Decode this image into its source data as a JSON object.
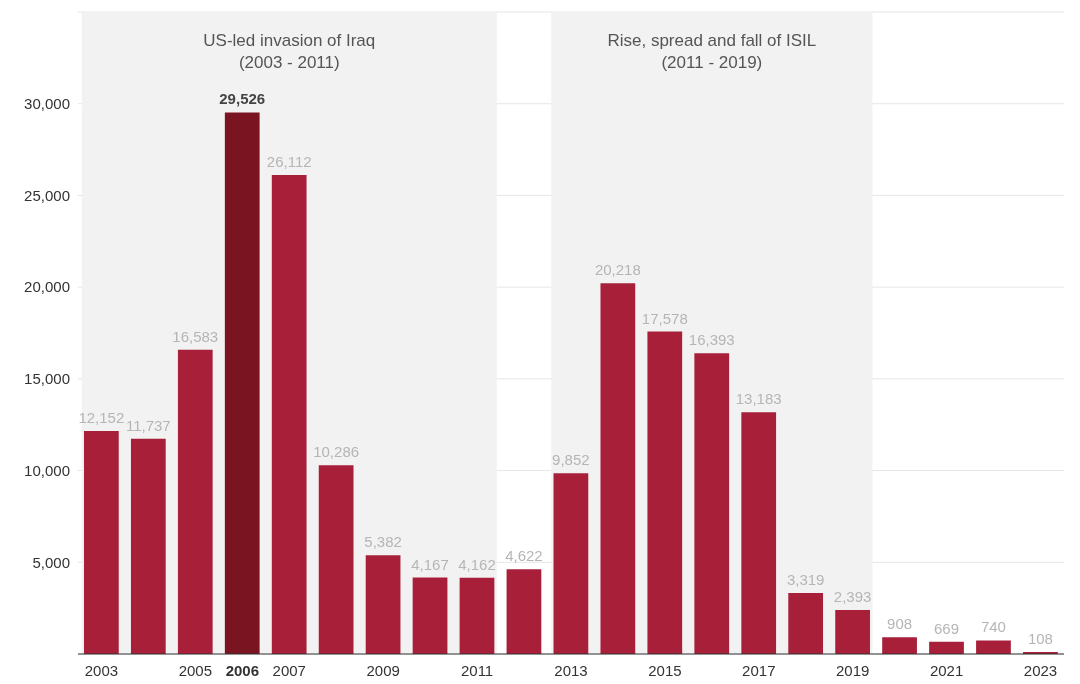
{
  "chart_data": {
    "type": "bar",
    "categories": [
      "2003",
      null,
      "2005",
      "2006",
      "2007",
      null,
      "2009",
      null,
      "2011",
      null,
      "2013",
      null,
      "2015",
      null,
      "2017",
      null,
      "2019",
      null,
      "2021",
      null,
      "2023"
    ],
    "values": [
      12152,
      11737,
      16583,
      29526,
      26112,
      10286,
      5382,
      4167,
      4162,
      4622,
      9852,
      20218,
      17578,
      16393,
      13183,
      3319,
      2393,
      908,
      669,
      740,
      108
    ],
    "color": "#a81f3a",
    "colors": [
      "#a81f3a",
      "#a81f3a",
      "#a81f3a",
      "#7a1420",
      "#a81f3a",
      "#a81f3a",
      "#a81f3a",
      "#a81f3a",
      "#a81f3a",
      "#a81f3a",
      "#a81f3a",
      "#a81f3a",
      "#a81f3a",
      "#a81f3a",
      "#a81f3a",
      "#a81f3a",
      "#a81f3a",
      "#a81f3a",
      "#a81f3a",
      "#a81f3a",
      "#a81f3a"
    ],
    "value_labels": [
      "12,152",
      "11,737",
      "16,583",
      "29,526",
      "26,112",
      "10,286",
      "5,382",
      "4,167",
      "4,162",
      "4,622",
      "9,852",
      "20,218",
      "17,578",
      "16,393",
      "13,183",
      "3,319",
      "2,393",
      "908",
      "669",
      "740",
      "108"
    ],
    "ylim": [
      0,
      35000
    ],
    "yticks": [
      {
        "value": 5000,
        "label": "5,000"
      },
      {
        "value": 10000,
        "label": "10,000"
      },
      {
        "value": 15000,
        "label": "15,000"
      },
      {
        "value": 20000,
        "label": "20,000"
      },
      {
        "value": 25000,
        "label": "25,000"
      },
      {
        "value": 30000,
        "label": "30,000"
      }
    ],
    "grid": "y",
    "bands": [
      {
        "axis": "x",
        "from": "2003",
        "to": "2011",
        "label": "US-led invasion of Iraq\n(2003 - 2011)",
        "color": "#f2f2f2"
      },
      {
        "axis": "x",
        "from": "2013",
        "to": "2019",
        "label": "Rise, spread and fall of ISIL\n(2011 - 2019)",
        "color": "#f2f2f2"
      }
    ]
  }
}
